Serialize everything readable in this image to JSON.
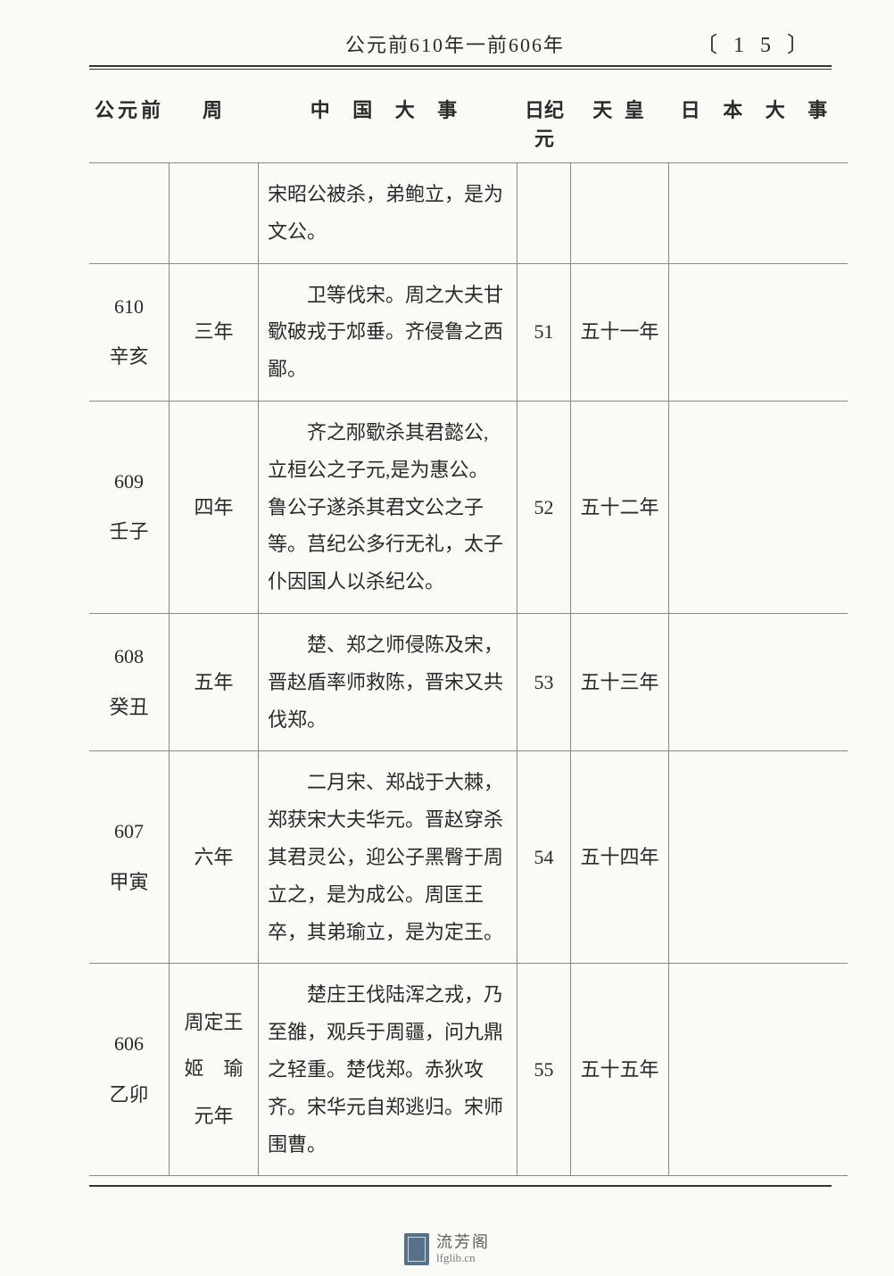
{
  "header": {
    "title": "公元前610年一前606年",
    "page_num": "〔 1 5 〕"
  },
  "columns": {
    "c1": "公元前",
    "c2": "周",
    "c3": "中 国 大 事",
    "c4": "日纪元",
    "c5": "天 皇",
    "c6": "日 本 大 事"
  },
  "rows": [
    {
      "event_only": "宋昭公被杀，弟鲍立，是为文公。"
    },
    {
      "year": "610",
      "ganzhi": "辛亥",
      "zhou": "三年",
      "event": "卫等伐宋。周之大夫甘歜破戎于邥垂。齐侵鲁之西鄙。",
      "jnengen": "51",
      "tennou": "五十一年",
      "japan": ""
    },
    {
      "year": "609",
      "ganzhi": "壬子",
      "zhou": "四年",
      "event": "齐之邴歜杀其君懿公,立桓公之子元,是为惠公。鲁公子遂杀其君文公之子等。莒纪公多行无礼，太子仆因国人以杀纪公。",
      "jnengen": "52",
      "tennou": "五十二年",
      "japan": ""
    },
    {
      "year": "608",
      "ganzhi": "癸丑",
      "zhou": "五年",
      "event": "楚、郑之师侵陈及宋，晋赵盾率师救陈，晋宋又共伐郑。",
      "jnengen": "53",
      "tennou": "五十三年",
      "japan": ""
    },
    {
      "year": "607",
      "ganzhi": "甲寅",
      "zhou": "六年",
      "event": "二月宋、郑战于大棘，郑获宋大夫华元。晋赵穿杀其君灵公，迎公子黑臀于周立之，是为成公。周匡王卒，其弟瑜立，是为定王。",
      "jnengen": "54",
      "tennou": "五十四年",
      "japan": ""
    },
    {
      "year": "606",
      "ganzhi": "乙卯",
      "zhou": "周定王\n姬　瑜\n元年",
      "event": "楚庄王伐陆浑之戎，乃至雒，观兵于周疆，问九鼎之轻重。楚伐郑。赤狄攻齐。宋华元自郑逃归。宋师围曹。",
      "jnengen": "55",
      "tennou": "五十五年",
      "japan": ""
    }
  ],
  "watermark": {
    "top": "流芳阁",
    "bot": "lfglib.cn"
  },
  "colors": {
    "bg": "#fafaf7",
    "text": "#2a2a2a",
    "rule": "#333",
    "cell_border": "#888"
  }
}
